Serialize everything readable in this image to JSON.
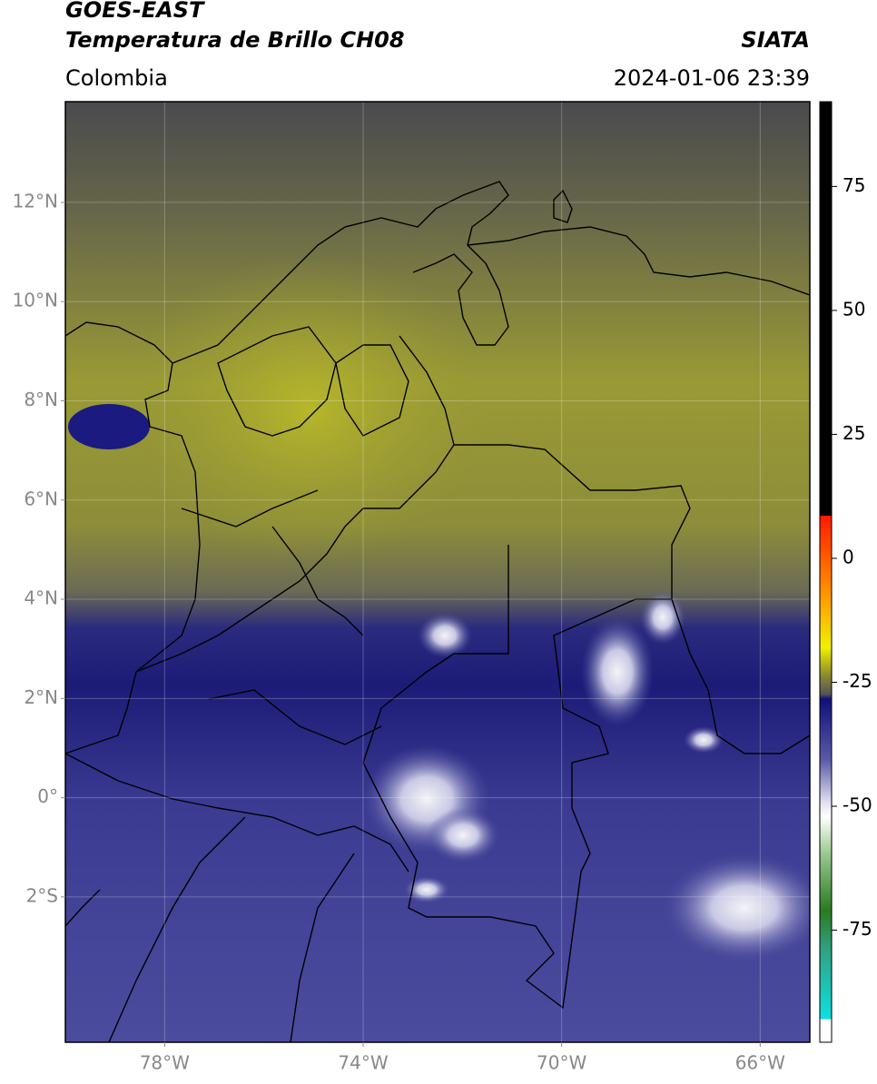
{
  "header": {
    "satellite": "GOES-EAST",
    "product": "Temperatura de Brillo CH08",
    "region": "Colombia",
    "source": "SIATA",
    "datetime": "2024-01-06 23:39"
  },
  "map": {
    "lon_range": [
      -80,
      -65
    ],
    "lat_range": [
      -4.93,
      14.03
    ],
    "lon_ticks": [
      {
        "value": -78,
        "label": "78°W"
      },
      {
        "value": -74,
        "label": "74°W"
      },
      {
        "value": -70,
        "label": "70°W"
      },
      {
        "value": -66,
        "label": "66°W"
      }
    ],
    "lat_ticks": [
      {
        "value": 12,
        "label": "12°N"
      },
      {
        "value": 10,
        "label": "10°N"
      },
      {
        "value": 8,
        "label": "8°N"
      },
      {
        "value": 6,
        "label": "6°N"
      },
      {
        "value": 4,
        "label": "4°N"
      },
      {
        "value": 2,
        "label": "2°N"
      },
      {
        "value": 0,
        "label": "0°"
      },
      {
        "value": -2,
        "label": "2°S"
      }
    ],
    "grid": true
  },
  "colorbar": {
    "range": [
      -97.6,
      92.1
    ],
    "ticks": [
      75,
      50,
      25,
      0,
      -25,
      -50,
      -75
    ]
  }
}
